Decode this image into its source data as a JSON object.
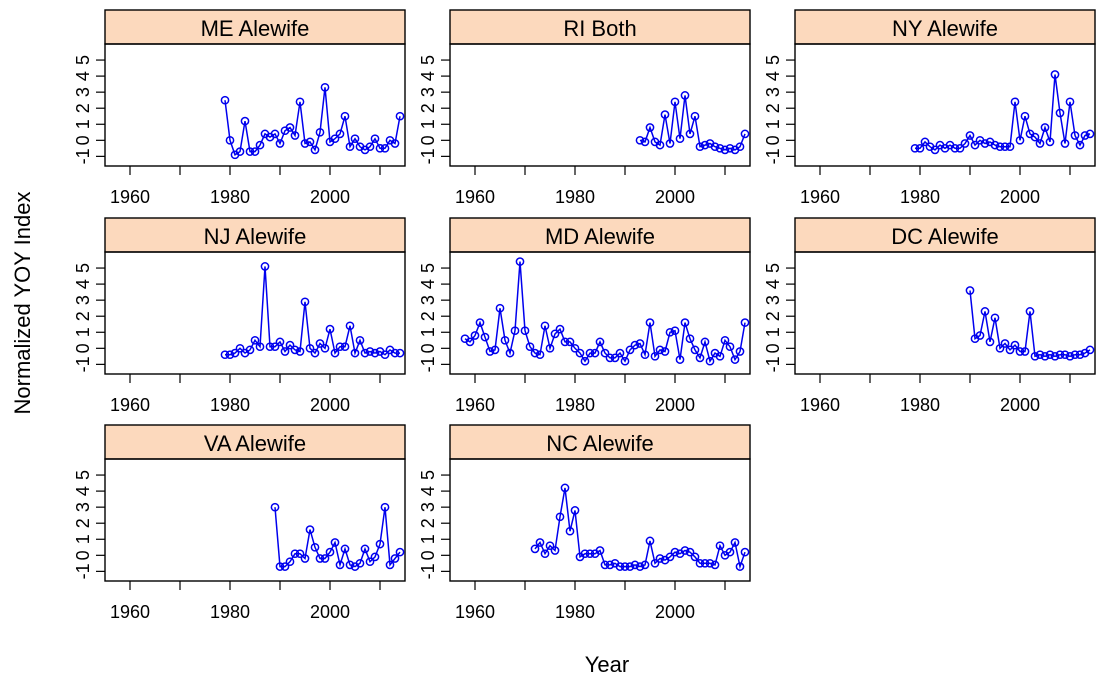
{
  "figure": {
    "xlabel": "Year",
    "ylabel": "Normalized YOY Index"
  },
  "colors": {
    "series": "#0000ee",
    "strip": "#fcd9bd",
    "frame": "#000000"
  },
  "chart_data": [
    {
      "type": "line",
      "title": "ME Alewife",
      "x_ticks": [
        "1960",
        "1980",
        "2000"
      ],
      "y_ticks": [
        "-1",
        "0",
        "1",
        "2",
        "3",
        "4",
        "5"
      ],
      "xlim": [
        1955,
        2015
      ],
      "ylim": [
        -1.6,
        6
      ],
      "x": [
        1979,
        1980,
        1981,
        1982,
        1983,
        1984,
        1985,
        1986,
        1987,
        1988,
        1989,
        1990,
        1991,
        1992,
        1993,
        1994,
        1995,
        1996,
        1997,
        1998,
        1999,
        2000,
        2001,
        2002,
        2003,
        2004,
        2005,
        2006,
        2007,
        2008,
        2009,
        2010,
        2011,
        2012,
        2013,
        2014
      ],
      "y": [
        2.5,
        0,
        -0.9,
        -0.7,
        1.2,
        -0.7,
        -0.7,
        -0.3,
        0.4,
        0.2,
        0.4,
        -0.2,
        0.6,
        0.8,
        0.3,
        2.4,
        -0.2,
        -0.1,
        -0.6,
        0.5,
        3.3,
        -0.1,
        0.1,
        0.4,
        1.5,
        -0.4,
        0.1,
        -0.4,
        -0.6,
        -0.4,
        0.1,
        -0.5,
        -0.5,
        0,
        -0.2,
        1.5
      ]
    },
    {
      "type": "line",
      "title": "RI Both",
      "x_ticks": [
        "1960",
        "1980",
        "2000"
      ],
      "y_ticks": [
        "-1",
        "0",
        "1",
        "2",
        "3",
        "4",
        "5"
      ],
      "xlim": [
        1955,
        2015
      ],
      "ylim": [
        -1.6,
        6
      ],
      "x": [
        1993,
        1994,
        1995,
        1996,
        1997,
        1998,
        1999,
        2000,
        2001,
        2002,
        2003,
        2004,
        2005,
        2006,
        2007,
        2008,
        2009,
        2010,
        2011,
        2012,
        2013,
        2014
      ],
      "y": [
        0,
        -0.1,
        0.8,
        -0.1,
        -0.3,
        1.6,
        -0.2,
        2.4,
        0.1,
        2.8,
        0.4,
        1.5,
        -0.4,
        -0.3,
        -0.2,
        -0.4,
        -0.5,
        -0.6,
        -0.5,
        -0.6,
        -0.4,
        0.4
      ]
    },
    {
      "type": "line",
      "title": "NY Alewife",
      "x_ticks": [
        "1960",
        "1980",
        "2000"
      ],
      "y_ticks": [
        "-1",
        "0",
        "1",
        "2",
        "3",
        "4",
        "5"
      ],
      "xlim": [
        1955,
        2015
      ],
      "ylim": [
        -1.6,
        6
      ],
      "x": [
        1979,
        1980,
        1981,
        1982,
        1983,
        1984,
        1985,
        1986,
        1987,
        1988,
        1989,
        1990,
        1991,
        1992,
        1993,
        1994,
        1995,
        1996,
        1997,
        1998,
        1999,
        2000,
        2001,
        2002,
        2003,
        2004,
        2005,
        2006,
        2007,
        2008,
        2009,
        2010,
        2011,
        2012,
        2013,
        2014
      ],
      "y": [
        -0.5,
        -0.5,
        -0.1,
        -0.4,
        -0.6,
        -0.3,
        -0.5,
        -0.3,
        -0.5,
        -0.5,
        -0.2,
        0.3,
        -0.3,
        0,
        -0.2,
        -0.1,
        -0.3,
        -0.4,
        -0.4,
        -0.4,
        2.4,
        0,
        1.5,
        0.4,
        0.2,
        -0.2,
        0.8,
        -0.1,
        4.1,
        1.7,
        -0.2,
        2.4,
        0.3,
        -0.3,
        0.3,
        0.4
      ]
    },
    {
      "type": "line",
      "title": "NJ Alewife",
      "x_ticks": [
        "1960",
        "1980",
        "2000"
      ],
      "y_ticks": [
        "-1",
        "0",
        "1",
        "2",
        "3",
        "4",
        "5"
      ],
      "xlim": [
        1955,
        2015
      ],
      "ylim": [
        -1.6,
        6
      ],
      "x": [
        1979,
        1980,
        1981,
        1982,
        1983,
        1984,
        1985,
        1986,
        1987,
        1988,
        1989,
        1990,
        1991,
        1992,
        1993,
        1994,
        1995,
        1996,
        1997,
        1998,
        1999,
        2000,
        2001,
        2002,
        2003,
        2004,
        2005,
        2006,
        2007,
        2008,
        2009,
        2010,
        2011,
        2012,
        2013,
        2014
      ],
      "y": [
        -0.4,
        -0.4,
        -0.3,
        0,
        -0.3,
        -0.1,
        0.5,
        0.1,
        5.1,
        0.1,
        0.1,
        0.4,
        -0.2,
        0.2,
        -0.1,
        -0.2,
        2.9,
        0,
        -0.3,
        0.3,
        0,
        1.2,
        -0.3,
        0.1,
        0.1,
        1.4,
        -0.3,
        0.5,
        -0.3,
        -0.2,
        -0.3,
        -0.2,
        -0.4,
        -0.1,
        -0.3,
        -0.3
      ]
    },
    {
      "type": "line",
      "title": "MD Alewife",
      "x_ticks": [
        "1960",
        "1980",
        "2000"
      ],
      "y_ticks": [
        "-1",
        "0",
        "1",
        "2",
        "3",
        "4",
        "5"
      ],
      "xlim": [
        1955,
        2015
      ],
      "ylim": [
        -1.6,
        6
      ],
      "x": [
        1958,
        1959,
        1960,
        1961,
        1962,
        1963,
        1964,
        1965,
        1966,
        1967,
        1968,
        1969,
        1970,
        1971,
        1972,
        1973,
        1974,
        1975,
        1976,
        1977,
        1978,
        1979,
        1980,
        1981,
        1982,
        1983,
        1984,
        1985,
        1986,
        1987,
        1988,
        1989,
        1990,
        1991,
        1992,
        1993,
        1994,
        1995,
        1996,
        1997,
        1998,
        1999,
        2000,
        2001,
        2002,
        2003,
        2004,
        2005,
        2006,
        2007,
        2008,
        2009,
        2010,
        2011,
        2012,
        2013,
        2014
      ],
      "y": [
        0.6,
        0.4,
        0.8,
        1.6,
        0.7,
        -0.2,
        -0.1,
        2.5,
        0.5,
        -0.3,
        1.1,
        5.4,
        1.1,
        0.1,
        -0.3,
        -0.4,
        1.4,
        0,
        0.9,
        1.2,
        0.4,
        0.4,
        0,
        -0.3,
        -0.8,
        -0.3,
        -0.3,
        0.4,
        -0.3,
        -0.6,
        -0.6,
        -0.3,
        -0.8,
        -0.1,
        0.2,
        0.3,
        -0.4,
        1.6,
        -0.5,
        -0.1,
        -0.2,
        1,
        1.1,
        -0.7,
        1.6,
        0.6,
        -0.1,
        -0.6,
        0.4,
        -0.8,
        -0.3,
        -0.5,
        0.5,
        0.1,
        -0.7,
        -0.2,
        1.6
      ]
    },
    {
      "type": "line",
      "title": "DC Alewife",
      "x_ticks": [
        "1960",
        "1980",
        "2000"
      ],
      "y_ticks": [
        "-1",
        "0",
        "1",
        "2",
        "3",
        "4",
        "5"
      ],
      "xlim": [
        1955,
        2015
      ],
      "ylim": [
        -1.6,
        6
      ],
      "x": [
        1990,
        1991,
        1992,
        1993,
        1994,
        1995,
        1996,
        1997,
        1998,
        1999,
        2000,
        2001,
        2002,
        2003,
        2004,
        2005,
        2006,
        2007,
        2008,
        2009,
        2010,
        2011,
        2012,
        2013,
        2014
      ],
      "y": [
        3.6,
        0.6,
        0.8,
        2.3,
        0.4,
        1.9,
        0,
        0.3,
        -0.1,
        0.2,
        -0.2,
        -0.2,
        2.3,
        -0.5,
        -0.4,
        -0.5,
        -0.4,
        -0.5,
        -0.4,
        -0.4,
        -0.5,
        -0.4,
        -0.4,
        -0.3,
        -0.1
      ]
    },
    {
      "type": "line",
      "title": "VA Alewife",
      "x_ticks": [
        "1960",
        "1980",
        "2000"
      ],
      "y_ticks": [
        "-1",
        "0",
        "1",
        "2",
        "3",
        "4",
        "5"
      ],
      "xlim": [
        1955,
        2015
      ],
      "ylim": [
        -1.6,
        6
      ],
      "x": [
        1989,
        1990,
        1991,
        1992,
        1993,
        1994,
        1995,
        1996,
        1997,
        1998,
        1999,
        2000,
        2001,
        2002,
        2003,
        2004,
        2005,
        2006,
        2007,
        2008,
        2009,
        2010,
        2011,
        2012,
        2013,
        2014
      ],
      "y": [
        3,
        -0.7,
        -0.7,
        -0.4,
        0.1,
        0.1,
        -0.2,
        1.6,
        0.5,
        -0.2,
        -0.2,
        0.2,
        0.8,
        -0.6,
        0.4,
        -0.6,
        -0.7,
        -0.5,
        0.4,
        -0.4,
        -0.1,
        0.7,
        3,
        -0.6,
        -0.2,
        0.2
      ]
    },
    {
      "type": "line",
      "title": "NC Alewife",
      "x_ticks": [
        "1960",
        "1980",
        "2000"
      ],
      "y_ticks": [
        "-1",
        "0",
        "1",
        "2",
        "3",
        "4",
        "5"
      ],
      "xlim": [
        1955,
        2015
      ],
      "ylim": [
        -1.6,
        6
      ],
      "x": [
        1972,
        1973,
        1974,
        1975,
        1976,
        1977,
        1978,
        1979,
        1980,
        1981,
        1982,
        1983,
        1984,
        1985,
        1986,
        1987,
        1988,
        1989,
        1990,
        1991,
        1992,
        1993,
        1994,
        1995,
        1996,
        1997,
        1998,
        1999,
        2000,
        2001,
        2002,
        2003,
        2004,
        2005,
        2006,
        2007,
        2008,
        2009,
        2010,
        2011,
        2012,
        2013,
        2014
      ],
      "y": [
        0.4,
        0.8,
        0.1,
        0.6,
        0.3,
        2.4,
        4.2,
        1.5,
        2.8,
        -0.1,
        0.1,
        0.1,
        0.1,
        0.3,
        -0.6,
        -0.6,
        -0.5,
        -0.7,
        -0.7,
        -0.7,
        -0.6,
        -0.7,
        -0.6,
        0.9,
        -0.5,
        -0.2,
        -0.3,
        -0.1,
        0.2,
        0.1,
        0.3,
        0.2,
        -0.1,
        -0.5,
        -0.5,
        -0.5,
        -0.6,
        0.6,
        0,
        0.2,
        0.8,
        -0.7,
        0.2
      ]
    }
  ]
}
